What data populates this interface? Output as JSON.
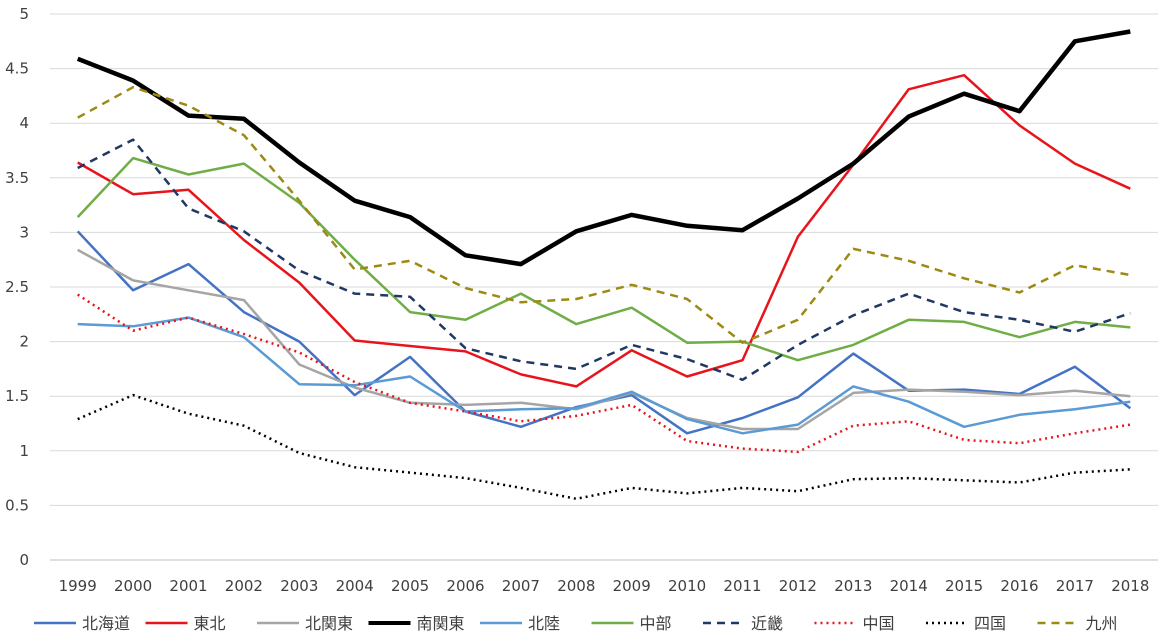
{
  "chart_data": {
    "type": "line",
    "title": "",
    "xlabel": "",
    "ylabel": "",
    "ylim": [
      0,
      5
    ],
    "yticks": [
      "0",
      "0.5",
      "1",
      "1.5",
      "2",
      "2.5",
      "3",
      "3.5",
      "4",
      "4.5",
      "5"
    ],
    "grid": "horizontal",
    "legend": "bottom",
    "categories": [
      "1999",
      "2000",
      "2001",
      "2002",
      "2003",
      "2004",
      "2005",
      "2006",
      "2007",
      "2008",
      "2009",
      "2010",
      "2011",
      "2012",
      "2013",
      "2014",
      "2015",
      "2016",
      "2017",
      "2018"
    ],
    "series": [
      {
        "name": "北海道",
        "color": "#4472c4",
        "dash": "solid",
        "width": 2.5,
        "values": [
          3.01,
          2.47,
          2.71,
          2.27,
          2.0,
          1.51,
          1.86,
          1.36,
          1.22,
          1.4,
          1.51,
          1.16,
          1.3,
          1.49,
          1.89,
          1.55,
          1.56,
          1.52,
          1.77,
          1.39
        ]
      },
      {
        "name": "東北",
        "color": "#e8141b",
        "dash": "solid",
        "width": 2.5,
        "values": [
          3.64,
          3.35,
          3.39,
          2.93,
          2.54,
          2.01,
          1.96,
          1.91,
          1.7,
          1.59,
          1.92,
          1.68,
          1.83,
          2.96,
          3.62,
          4.31,
          4.44,
          3.98,
          3.63,
          3.4
        ]
      },
      {
        "name": "北関東",
        "color": "#a5a5a5",
        "dash": "solid",
        "width": 2.5,
        "values": [
          2.84,
          2.56,
          2.47,
          2.38,
          1.79,
          1.58,
          1.44,
          1.42,
          1.44,
          1.38,
          1.53,
          1.3,
          1.2,
          1.2,
          1.53,
          1.56,
          1.54,
          1.51,
          1.55,
          1.5
        ]
      },
      {
        "name": "南関東",
        "color": "#000000",
        "dash": "solid",
        "width": 4.5,
        "values": [
          4.59,
          4.39,
          4.07,
          4.04,
          3.64,
          3.29,
          3.14,
          2.79,
          2.71,
          3.01,
          3.16,
          3.06,
          3.02,
          3.31,
          3.63,
          4.06,
          4.27,
          4.11,
          4.75,
          4.84
        ]
      },
      {
        "name": "北陸",
        "color": "#5b9bd5",
        "dash": "solid",
        "width": 2.5,
        "values": [
          2.16,
          2.14,
          2.22,
          2.04,
          1.61,
          1.6,
          1.68,
          1.36,
          1.38,
          1.39,
          1.54,
          1.29,
          1.16,
          1.24,
          1.59,
          1.45,
          1.22,
          1.33,
          1.38,
          1.45
        ]
      },
      {
        "name": "中部",
        "color": "#70ad47",
        "dash": "solid",
        "width": 2.5,
        "values": [
          3.14,
          3.68,
          3.53,
          3.63,
          3.27,
          2.75,
          2.27,
          2.2,
          2.44,
          2.16,
          2.31,
          1.99,
          2.0,
          1.83,
          1.97,
          2.2,
          2.18,
          2.04,
          2.18,
          2.13
        ]
      },
      {
        "name": "近畿",
        "color": "#203864",
        "dash": "8,6",
        "width": 2.5,
        "values": [
          3.59,
          3.85,
          3.22,
          3.01,
          2.65,
          2.44,
          2.41,
          1.94,
          1.82,
          1.75,
          1.97,
          1.84,
          1.65,
          1.97,
          2.24,
          2.44,
          2.27,
          2.2,
          2.09,
          2.26
        ]
      },
      {
        "name": "中国",
        "color": "#e8141b",
        "dash": "2,4",
        "width": 2.5,
        "values": [
          2.43,
          2.1,
          2.22,
          2.07,
          1.9,
          1.63,
          1.44,
          1.36,
          1.27,
          1.32,
          1.42,
          1.09,
          1.02,
          0.99,
          1.23,
          1.27,
          1.1,
          1.07,
          1.16,
          1.24
        ]
      },
      {
        "name": "四国",
        "color": "#000000",
        "dash": "2,4",
        "width": 2.5,
        "values": [
          1.29,
          1.51,
          1.34,
          1.23,
          0.98,
          0.85,
          0.8,
          0.75,
          0.66,
          0.56,
          0.66,
          0.61,
          0.66,
          0.63,
          0.74,
          0.75,
          0.73,
          0.71,
          0.8,
          0.83
        ]
      },
      {
        "name": "九州",
        "color": "#9c8a13",
        "dash": "8,6",
        "width": 2.5,
        "values": [
          4.05,
          4.33,
          4.16,
          3.89,
          3.29,
          2.66,
          2.74,
          2.49,
          2.36,
          2.39,
          2.52,
          2.39,
          1.99,
          2.2,
          2.85,
          2.74,
          2.58,
          2.45,
          2.7,
          2.61
        ]
      }
    ]
  }
}
